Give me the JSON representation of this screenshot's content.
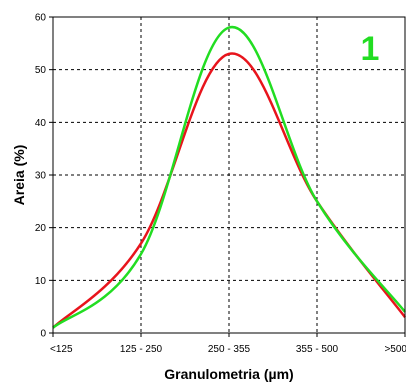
{
  "chart_data": {
    "type": "line",
    "title": "",
    "panel_label": "1",
    "xlabel": "Granulometria (µm)",
    "ylabel": "Areia (%)",
    "categories": [
      "<125",
      "125 - 250",
      "250 - 355",
      "355 - 500",
      ">500"
    ],
    "ylim": [
      0,
      60
    ],
    "yticks": [
      "0",
      "10",
      "20",
      "30",
      "40",
      "50",
      "60"
    ],
    "grid": true,
    "legend": "none",
    "series": [
      {
        "values": [
          1,
          17,
          53,
          25,
          3
        ],
        "color": "#e8141c"
      },
      {
        "values": [
          1,
          15,
          58,
          25,
          4
        ],
        "color": "#22dd22"
      }
    ]
  }
}
